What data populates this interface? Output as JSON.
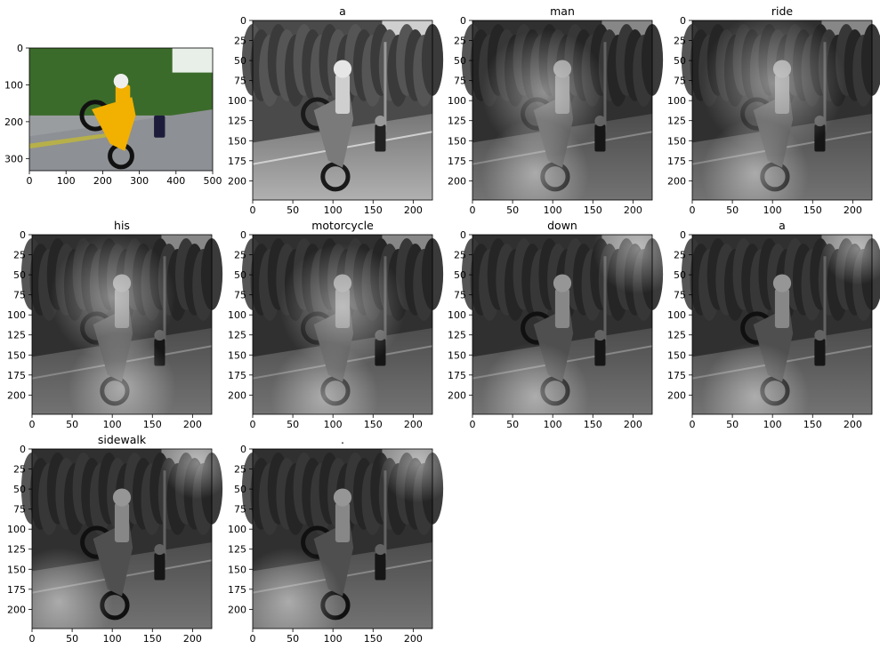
{
  "figure": {
    "original_panel": {
      "image": "color photo: motorcycle rider doing a wheelie on road",
      "x_ticks": [
        "0",
        "100",
        "200",
        "300",
        "400",
        "500"
      ],
      "y_ticks": [
        "0",
        "100",
        "200",
        "300"
      ],
      "colors": {
        "sky": "#e8efe8",
        "trees": "#3b6b2a",
        "road": "#9a9da0",
        "bike": "#f2b000"
      }
    },
    "attention_panels": [
      {
        "title": "a"
      },
      {
        "title": "man"
      },
      {
        "title": "ride"
      },
      {
        "title": "his"
      },
      {
        "title": "motorcycle"
      },
      {
        "title": "down"
      },
      {
        "title": "a"
      },
      {
        "title": "sidewalk"
      },
      {
        "title": "."
      }
    ],
    "panel_x_ticks": [
      "0",
      "50",
      "100",
      "150",
      "200"
    ],
    "panel_y_ticks": [
      "0",
      "25",
      "50",
      "75",
      "100",
      "125",
      "150",
      "175",
      "200"
    ]
  }
}
